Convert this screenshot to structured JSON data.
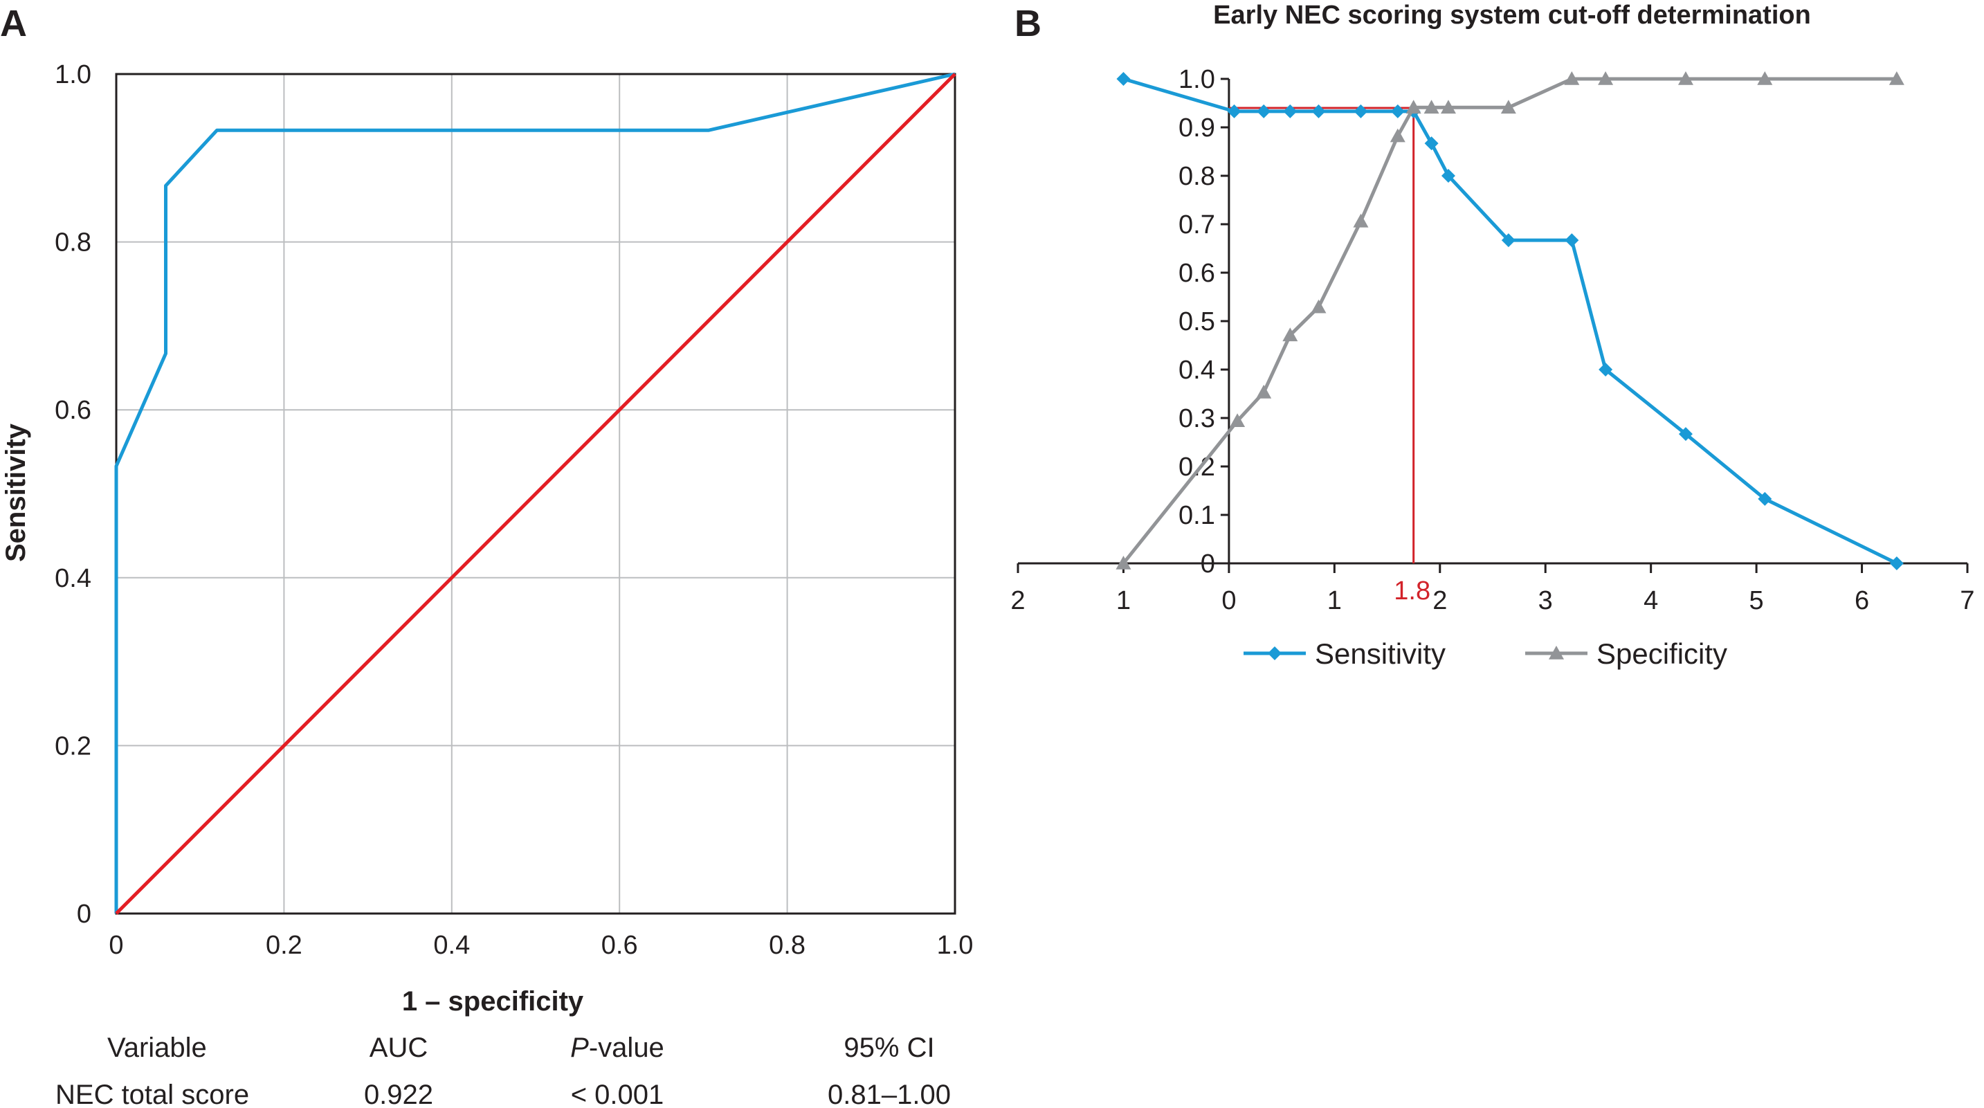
{
  "panel_a_label": "A",
  "panel_b_label": "B",
  "chart_data": [
    {
      "type": "line",
      "panel": "A",
      "title": "",
      "xlabel": "1 – specificity",
      "ylabel": "Sensitivity",
      "xlim": [
        0,
        1
      ],
      "ylim": [
        0,
        1
      ],
      "x_ticks": [
        "0",
        "0.2",
        "0.4",
        "0.6",
        "0.8",
        "1.0"
      ],
      "y_ticks": [
        "0",
        "0.2",
        "0.4",
        "0.6",
        "0.8",
        "1.0"
      ],
      "grid": true,
      "series": [
        {
          "color": "#1a9ad6",
          "points": [
            [
              0,
              0
            ],
            [
              0,
              0.533
            ],
            [
              0.059,
              0.667
            ],
            [
              0.059,
              0.867
            ],
            [
              0.12,
              0.933
            ],
            [
              0.706,
              0.933
            ],
            [
              1.0,
              1.0
            ]
          ]
        },
        {
          "color": "#e31e24",
          "points": [
            [
              0,
              0
            ],
            [
              1,
              1
            ]
          ]
        }
      ],
      "table": {
        "headers": [
          "Variable",
          "AUC",
          "P",
          "-value",
          "95% CI"
        ],
        "row": [
          "NEC total score",
          "0.922",
          "< 0.001",
          "0.81–1.00"
        ]
      }
    },
    {
      "type": "line",
      "panel": "B",
      "title": "Early NEC scoring system cut-off determination",
      "xlabel": "",
      "ylabel": "",
      "x_ticks": [
        "2",
        "1",
        "0",
        "1",
        "2",
        "3",
        "4",
        "5",
        "6",
        "7"
      ],
      "x_tick_positions": [
        -2,
        -1,
        0,
        1,
        2,
        3,
        4,
        5,
        6,
        7
      ],
      "xlim": [
        -2,
        7
      ],
      "ylim": [
        0,
        1
      ],
      "y_ticks": [
        "0",
        "0.1",
        "0.2",
        "0.3",
        "0.4",
        "0.5",
        "0.6",
        "0.7",
        "0.8",
        "0.9",
        "1.0"
      ],
      "grid": false,
      "legend_position": "bottom",
      "cutoff": {
        "x": 1.75,
        "y": 0.94,
        "label": "1.8",
        "color": "#d2232a"
      },
      "series": [
        {
          "name": "Sensitivity",
          "color": "#1a9ad6",
          "marker": "diamond",
          "points": [
            [
              -1,
              1.0
            ],
            [
              0.05,
              0.933
            ],
            [
              0.33,
              0.933
            ],
            [
              0.58,
              0.933
            ],
            [
              0.85,
              0.933
            ],
            [
              1.25,
              0.933
            ],
            [
              1.6,
              0.933
            ],
            [
              1.75,
              0.933
            ],
            [
              1.92,
              0.867
            ],
            [
              2.08,
              0.8
            ],
            [
              2.65,
              0.667
            ],
            [
              3.25,
              0.667
            ],
            [
              3.57,
              0.4
            ],
            [
              4.33,
              0.267
            ],
            [
              5.08,
              0.133
            ],
            [
              6.33,
              0.0
            ]
          ]
        },
        {
          "name": "Specificity",
          "color": "#929497",
          "marker": "triangle",
          "points": [
            [
              -1,
              0.0
            ],
            [
              0.08,
              0.294
            ],
            [
              0.33,
              0.353
            ],
            [
              0.58,
              0.471
            ],
            [
              0.85,
              0.529
            ],
            [
              1.25,
              0.706
            ],
            [
              1.6,
              0.882
            ],
            [
              1.75,
              0.941
            ],
            [
              1.92,
              0.941
            ],
            [
              2.08,
              0.941
            ],
            [
              2.65,
              0.941
            ],
            [
              3.25,
              1.0
            ],
            [
              3.57,
              1.0
            ],
            [
              4.33,
              1.0
            ],
            [
              5.08,
              1.0
            ],
            [
              6.33,
              1.0
            ]
          ]
        }
      ]
    }
  ]
}
